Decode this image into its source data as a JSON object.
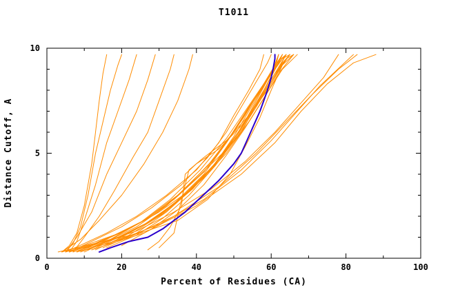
{
  "chart_data": {
    "type": "line",
    "title": "T1011",
    "xlabel": "Percent of Residues (CA)",
    "ylabel": "Distance Cutoff, A",
    "xlim": [
      0,
      100
    ],
    "ylim": [
      0,
      10
    ],
    "xticks": [
      0,
      20,
      40,
      60,
      80,
      100
    ],
    "yticks": [
      0,
      5,
      10
    ],
    "x_minor_step": 10,
    "y_minor_step": 1,
    "grid": false,
    "legend": "none",
    "colors": {
      "models": "#ff8c00",
      "highlight": "#2a00cc",
      "axis": "#000000",
      "background": "#ffffff"
    },
    "highlight_series": {
      "name": "highlight-model",
      "points": [
        [
          14,
          0.3
        ],
        [
          17,
          0.5
        ],
        [
          22,
          0.8
        ],
        [
          27,
          1.0
        ],
        [
          31,
          1.4
        ],
        [
          34,
          1.8
        ],
        [
          37,
          2.2
        ],
        [
          40,
          2.7
        ],
        [
          43,
          3.2
        ],
        [
          46,
          3.7
        ],
        [
          48,
          4.1
        ],
        [
          50,
          4.5
        ],
        [
          52,
          5.0
        ],
        [
          53,
          5.4
        ],
        [
          54,
          5.8
        ],
        [
          55,
          6.2
        ],
        [
          56,
          6.6
        ],
        [
          57,
          7.0
        ],
        [
          58,
          7.5
        ],
        [
          59,
          8.0
        ],
        [
          60,
          8.6
        ],
        [
          60.5,
          9.0
        ],
        [
          61,
          9.5
        ],
        [
          61,
          9.7
        ]
      ]
    },
    "model_series": [
      [
        [
          4,
          0.3
        ],
        [
          6,
          0.6
        ],
        [
          8,
          1.2
        ],
        [
          10,
          2.5
        ],
        [
          12,
          4.5
        ],
        [
          13,
          6
        ],
        [
          14,
          7.5
        ],
        [
          15,
          8.8
        ],
        [
          16,
          9.7
        ]
      ],
      [
        [
          5,
          0.3
        ],
        [
          7,
          0.7
        ],
        [
          9,
          1.5
        ],
        [
          11,
          3
        ],
        [
          13,
          5
        ],
        [
          15,
          6.5
        ],
        [
          17,
          8
        ],
        [
          19,
          9.2
        ],
        [
          20,
          9.7
        ]
      ],
      [
        [
          6,
          0.3
        ],
        [
          8,
          0.8
        ],
        [
          10,
          1.8
        ],
        [
          13,
          3.5
        ],
        [
          16,
          5.5
        ],
        [
          19,
          7
        ],
        [
          22,
          8.5
        ],
        [
          24,
          9.7
        ]
      ],
      [
        [
          5,
          0.3
        ],
        [
          8,
          1
        ],
        [
          12,
          2.2
        ],
        [
          16,
          4
        ],
        [
          20,
          5.5
        ],
        [
          24,
          7
        ],
        [
          27,
          8.5
        ],
        [
          29,
          9.7
        ]
      ],
      [
        [
          7,
          0.3
        ],
        [
          10,
          1
        ],
        [
          14,
          2
        ],
        [
          18,
          3.2
        ],
        [
          23,
          4.8
        ],
        [
          27,
          6
        ],
        [
          30,
          7.5
        ],
        [
          33,
          9
        ],
        [
          34,
          9.7
        ]
      ],
      [
        [
          4,
          0.3
        ],
        [
          9,
          0.9
        ],
        [
          14,
          1.8
        ],
        [
          20,
          3
        ],
        [
          26,
          4.5
        ],
        [
          31,
          6
        ],
        [
          35,
          7.5
        ],
        [
          38,
          9
        ],
        [
          39,
          9.7
        ]
      ],
      [
        [
          5,
          0.3
        ],
        [
          10,
          0.7
        ],
        [
          16,
          1.2
        ],
        [
          24,
          2
        ],
        [
          32,
          3
        ],
        [
          40,
          4.2
        ],
        [
          46,
          5.5
        ],
        [
          50,
          6.8
        ],
        [
          54,
          8
        ],
        [
          57,
          9
        ],
        [
          58,
          9.7
        ]
      ],
      [
        [
          6,
          0.3
        ],
        [
          12,
          0.8
        ],
        [
          20,
          1.5
        ],
        [
          28,
          2.4
        ],
        [
          36,
          3.5
        ],
        [
          43,
          4.8
        ],
        [
          48,
          6
        ],
        [
          52,
          7.2
        ],
        [
          56,
          8.4
        ],
        [
          59,
          9.3
        ],
        [
          60,
          9.7
        ]
      ],
      [
        [
          8,
          0.3
        ],
        [
          14,
          0.8
        ],
        [
          22,
          1.4
        ],
        [
          30,
          2.2
        ],
        [
          38,
          3.2
        ],
        [
          45,
          4.5
        ],
        [
          50,
          5.8
        ],
        [
          54,
          7
        ],
        [
          58,
          8.2
        ],
        [
          61,
          9.2
        ],
        [
          62,
          9.7
        ]
      ],
      [
        [
          10,
          0.3
        ],
        [
          16,
          0.8
        ],
        [
          24,
          1.5
        ],
        [
          32,
          2.5
        ],
        [
          40,
          3.8
        ],
        [
          47,
          5
        ],
        [
          52,
          6.2
        ],
        [
          56,
          7.5
        ],
        [
          60,
          8.8
        ],
        [
          62,
          9.7
        ]
      ],
      [
        [
          12,
          0.4
        ],
        [
          18,
          0.9
        ],
        [
          26,
          1.6
        ],
        [
          34,
          2.6
        ],
        [
          42,
          4
        ],
        [
          48,
          5.5
        ],
        [
          53,
          6.8
        ],
        [
          57,
          8
        ],
        [
          61,
          9
        ],
        [
          63,
          9.7
        ]
      ],
      [
        [
          9,
          0.3
        ],
        [
          15,
          0.7
        ],
        [
          23,
          1.3
        ],
        [
          31,
          2.1
        ],
        [
          39,
          3.3
        ],
        [
          46,
          4.7
        ],
        [
          52,
          6
        ],
        [
          56,
          7.3
        ],
        [
          60,
          8.5
        ],
        [
          63,
          9.4
        ],
        [
          64,
          9.7
        ]
      ],
      [
        [
          7,
          0.3
        ],
        [
          13,
          0.6
        ],
        [
          21,
          1.1
        ],
        [
          29,
          1.9
        ],
        [
          37,
          3
        ],
        [
          44,
          4.3
        ],
        [
          50,
          5.6
        ],
        [
          55,
          7
        ],
        [
          59,
          8.3
        ],
        [
          62,
          9.3
        ],
        [
          63,
          9.7
        ]
      ],
      [
        [
          11,
          0.4
        ],
        [
          17,
          0.9
        ],
        [
          25,
          1.7
        ],
        [
          33,
          2.8
        ],
        [
          41,
          4.2
        ],
        [
          48,
          5.7
        ],
        [
          53,
          7
        ],
        [
          58,
          8.3
        ],
        [
          62,
          9.3
        ],
        [
          64,
          9.7
        ]
      ],
      [
        [
          8,
          0.3
        ],
        [
          16,
          0.9
        ],
        [
          26,
          1.8
        ],
        [
          35,
          3
        ],
        [
          43,
          4.4
        ],
        [
          49,
          5.8
        ],
        [
          54,
          7.2
        ],
        [
          59,
          8.5
        ],
        [
          63,
          9.5
        ],
        [
          65,
          9.7
        ]
      ],
      [
        [
          13,
          0.4
        ],
        [
          20,
          1
        ],
        [
          28,
          1.8
        ],
        [
          36,
          2.9
        ],
        [
          44,
          4.3
        ],
        [
          50,
          5.7
        ],
        [
          55,
          7
        ],
        [
          60,
          8.4
        ],
        [
          64,
          9.5
        ],
        [
          66,
          9.7
        ]
      ],
      [
        [
          14,
          0.5
        ],
        [
          22,
          1.1
        ],
        [
          30,
          2
        ],
        [
          38,
          3.2
        ],
        [
          46,
          4.7
        ],
        [
          52,
          6.2
        ],
        [
          57,
          7.6
        ],
        [
          61,
          8.8
        ],
        [
          65,
          9.7
        ]
      ],
      [
        [
          15,
          0.5
        ],
        [
          24,
          1.2
        ],
        [
          32,
          2.2
        ],
        [
          40,
          3.5
        ],
        [
          48,
          5
        ],
        [
          54,
          6.5
        ],
        [
          59,
          7.9
        ],
        [
          63,
          9
        ],
        [
          67,
          9.7
        ]
      ],
      [
        [
          27,
          0.4
        ],
        [
          30,
          0.8
        ],
        [
          33,
          1.5
        ],
        [
          36,
          2.5
        ],
        [
          37,
          4
        ],
        [
          40,
          4.5
        ],
        [
          46,
          5.2
        ],
        [
          52,
          6.3
        ],
        [
          57,
          7.5
        ],
        [
          61,
          8.7
        ],
        [
          64,
          9.7
        ]
      ],
      [
        [
          30,
          0.5
        ],
        [
          34,
          1.2
        ],
        [
          36,
          2.8
        ],
        [
          38,
          4.2
        ],
        [
          42,
          4.8
        ],
        [
          48,
          5.6
        ],
        [
          54,
          6.8
        ],
        [
          59,
          8
        ],
        [
          63,
          9.2
        ],
        [
          66,
          9.7
        ]
      ],
      [
        [
          3,
          0.3
        ],
        [
          8,
          0.5
        ],
        [
          15,
          0.8
        ],
        [
          25,
          1.2
        ],
        [
          35,
          1.8
        ],
        [
          43,
          2.8
        ],
        [
          49,
          4
        ],
        [
          53,
          5.3
        ],
        [
          57,
          6.7
        ],
        [
          60,
          8
        ],
        [
          63,
          9.2
        ],
        [
          65,
          9.7
        ]
      ],
      [
        [
          6,
          0.3
        ],
        [
          14,
          0.7
        ],
        [
          24,
          1.3
        ],
        [
          34,
          2.2
        ],
        [
          44,
          3.3
        ],
        [
          53,
          4.6
        ],
        [
          61,
          6
        ],
        [
          68,
          7.4
        ],
        [
          74,
          8.6
        ],
        [
          78,
          9.7
        ]
      ],
      [
        [
          8,
          0.3
        ],
        [
          18,
          0.8
        ],
        [
          30,
          1.6
        ],
        [
          42,
          2.8
        ],
        [
          52,
          4.2
        ],
        [
          60,
          5.6
        ],
        [
          67,
          7
        ],
        [
          73,
          8.2
        ],
        [
          79,
          9.2
        ],
        [
          82,
          9.7
        ]
      ],
      [
        [
          10,
          0.4
        ],
        [
          22,
          1
        ],
        [
          34,
          2
        ],
        [
          46,
          3.4
        ],
        [
          56,
          5
        ],
        [
          64,
          6.5
        ],
        [
          71,
          7.8
        ],
        [
          78,
          9
        ],
        [
          83,
          9.7
        ]
      ],
      [
        [
          12,
          0.4
        ],
        [
          26,
          1.2
        ],
        [
          40,
          2.5
        ],
        [
          52,
          4
        ],
        [
          61,
          5.5
        ],
        [
          68,
          7
        ],
        [
          75,
          8.3
        ],
        [
          82,
          9.3
        ],
        [
          88,
          9.7
        ]
      ],
      [
        [
          5,
          0.3
        ],
        [
          11,
          0.6
        ],
        [
          19,
          1
        ],
        [
          27,
          1.7
        ],
        [
          35,
          2.7
        ],
        [
          43,
          4
        ],
        [
          49,
          5.4
        ],
        [
          54,
          6.8
        ],
        [
          58,
          8
        ],
        [
          61,
          9
        ],
        [
          62,
          9.7
        ]
      ],
      [
        [
          16,
          0.5
        ],
        [
          24,
          1.1
        ],
        [
          31,
          1.9
        ],
        [
          38,
          3
        ],
        [
          45,
          4.4
        ],
        [
          51,
          5.8
        ],
        [
          56,
          7.2
        ],
        [
          60,
          8.4
        ],
        [
          63,
          9.3
        ],
        [
          65,
          9.7
        ]
      ],
      [
        [
          4,
          0.3
        ],
        [
          10,
          0.6
        ],
        [
          18,
          1.1
        ],
        [
          26,
          1.8
        ],
        [
          34,
          2.8
        ],
        [
          42,
          4.1
        ],
        [
          48,
          5.5
        ],
        [
          53,
          6.9
        ],
        [
          58,
          8.2
        ],
        [
          62,
          9.4
        ],
        [
          64,
          9.7
        ]
      ],
      [
        [
          20,
          0.6
        ],
        [
          28,
          1.4
        ],
        [
          35,
          2.3
        ],
        [
          42,
          3.5
        ],
        [
          48,
          4.9
        ],
        [
          53,
          6.2
        ],
        [
          58,
          7.6
        ],
        [
          62,
          8.8
        ],
        [
          66,
          9.7
        ]
      ],
      [
        [
          6,
          0.3
        ],
        [
          13,
          0.7
        ],
        [
          21,
          1.3
        ],
        [
          29,
          2.1
        ],
        [
          37,
          3.3
        ],
        [
          45,
          4.8
        ],
        [
          51,
          6.3
        ],
        [
          56,
          7.7
        ],
        [
          60,
          8.9
        ],
        [
          63,
          9.7
        ]
      ]
    ]
  }
}
